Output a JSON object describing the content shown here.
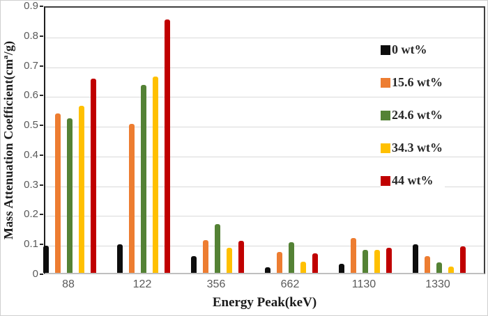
{
  "figure": {
    "background": "#ffffff",
    "outer_border_color": "#cfcfcf"
  },
  "chart_data": {
    "type": "bar",
    "title": "",
    "xlabel": "Energy Peak(keV)",
    "ylabel": "Mass Attenuation Coefficient(cmª/g)",
    "categories": [
      "88",
      "122",
      "356",
      "662",
      "1130",
      "1330"
    ],
    "series": [
      {
        "name": "0 wt%",
        "color": "#0d0d0d",
        "values": [
          0.09,
          0.095,
          0.056,
          0.019,
          0.03,
          0.095
        ]
      },
      {
        "name": "15.6 wt%",
        "color": "#ed7d31",
        "values": [
          0.535,
          0.5,
          0.111,
          0.07,
          0.118,
          0.057
        ]
      },
      {
        "name": "24.6 wt%",
        "color": "#548235",
        "values": [
          0.52,
          0.63,
          0.163,
          0.102,
          0.077,
          0.034
        ]
      },
      {
        "name": "34.3 wt%",
        "color": "#ffc000",
        "values": [
          0.56,
          0.66,
          0.084,
          0.038,
          0.078,
          0.02
        ]
      },
      {
        "name": "44 wt%",
        "color": "#c00000",
        "values": [
          0.652,
          0.852,
          0.107,
          0.066,
          0.084,
          0.089
        ]
      }
    ],
    "ylim": [
      0,
      0.9
    ],
    "ytick_step": 0.1,
    "ytick_labels": [
      "0",
      "0.1",
      "0.2",
      "0.3",
      "0.4",
      "0.5",
      "0.6",
      "0.7",
      "0.8",
      "0.9"
    ],
    "grid": true,
    "gridline_color": "#d9d9d9",
    "y_axis_line_color": "#1f1f1f",
    "x_axis_line_color": "#bfbfbf",
    "plot_border_color": "#3f3f3f",
    "tick_label_color": "#595959",
    "axis_title_color": "#1a1a1a",
    "legend": {
      "position": "inside-top-right",
      "text_color": "#262626",
      "entries": [
        "0 wt%",
        "15.6 wt%",
        "24.6 wt%",
        "34.3 wt%",
        "44 wt%"
      ]
    }
  }
}
